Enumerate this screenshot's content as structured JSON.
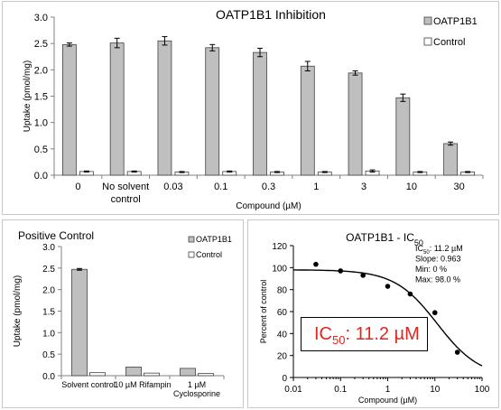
{
  "chart_data": [
    {
      "type": "bar",
      "title": "OATP1B1 Inhibition",
      "xlabel": "Compound (µM)",
      "ylabel": "Uptake (pmol/mg)",
      "ylim": [
        0,
        3
      ],
      "yticks": [
        "0.0",
        "0.5",
        "1.0",
        "1.5",
        "2.0",
        "2.5",
        "3.0"
      ],
      "categories": [
        "0",
        "No solvent control",
        "0.03",
        "0.1",
        "0.3",
        "1",
        "3",
        "10",
        "30"
      ],
      "category_lines": [
        [
          "0"
        ],
        [
          "No solvent",
          "control"
        ],
        [
          "0.03"
        ],
        [
          "0.1"
        ],
        [
          "0.3"
        ],
        [
          "1"
        ],
        [
          "3"
        ],
        [
          "10"
        ],
        [
          "30"
        ]
      ],
      "series": [
        {
          "name": "OATP1B1",
          "color": "#bfbfbf",
          "values": [
            2.48,
            2.51,
            2.55,
            2.42,
            2.33,
            2.07,
            1.94,
            1.47,
            0.6
          ],
          "errors": [
            0.03,
            0.09,
            0.08,
            0.06,
            0.08,
            0.09,
            0.04,
            0.07,
            0.03
          ]
        },
        {
          "name": "Control",
          "color": "#ffffff",
          "values": [
            0.07,
            0.07,
            0.06,
            0.07,
            0.06,
            0.06,
            0.08,
            0.06,
            0.06
          ],
          "errors": [
            0.01,
            0.01,
            0.01,
            0.01,
            0.01,
            0.01,
            0.02,
            0.01,
            0.01
          ]
        }
      ],
      "legend_position": "top-right"
    },
    {
      "type": "bar",
      "title": "Positive Control",
      "xlabel": "",
      "ylabel": "Uptake (pmol/mg)",
      "ylim": [
        0,
        3
      ],
      "yticks": [
        "0.0",
        "0.5",
        "1.0",
        "1.5",
        "2.0",
        "2.5",
        "3.0"
      ],
      "categories": [
        "Solvent control",
        "10 µM Rifampin",
        "1 µM Cyclosporine"
      ],
      "category_lines": [
        [
          "Solvent control"
        ],
        [
          "10 µM Rifampin"
        ],
        [
          "1 µM",
          "Cyclosporine"
        ]
      ],
      "series": [
        {
          "name": "OATP1B1",
          "color": "#bfbfbf",
          "values": [
            2.47,
            0.2,
            0.17
          ],
          "errors": [
            0.02,
            0,
            0
          ]
        },
        {
          "name": "Control",
          "color": "#ffffff",
          "values": [
            0.07,
            0.06,
            0.05
          ],
          "errors": [
            0,
            0,
            0
          ]
        }
      ],
      "legend_position": "top-right"
    },
    {
      "type": "scatter",
      "title_main": "OATP1B1 - IC",
      "title_sub": "50",
      "xlabel": "Compound (µM)",
      "ylabel": "Percent of control",
      "x_scale": "log",
      "xlim": [
        0.01,
        100
      ],
      "ylim": [
        0,
        120
      ],
      "xticks": [
        "0.01",
        "0.1",
        "1",
        "10",
        "100"
      ],
      "yticks": [
        "0",
        "20",
        "40",
        "60",
        "80",
        "100",
        "120"
      ],
      "points": {
        "x": [
          0.03,
          0.1,
          0.3,
          1,
          3,
          10,
          30
        ],
        "y": [
          103,
          97,
          93,
          83,
          76,
          59,
          23
        ]
      },
      "fit": {
        "ic50": 11.2,
        "slope": 0.963,
        "min": 0,
        "max": 98.0
      },
      "annotation_lines": [
        {
          "pre": "IC",
          "sub": "50",
          "post": ": 11.2 µM"
        },
        {
          "pre": "Slope: 0.963",
          "sub": "",
          "post": ""
        },
        {
          "pre": "Min: 0 %",
          "sub": "",
          "post": ""
        },
        {
          "pre": "Max: 98.0 %",
          "sub": "",
          "post": ""
        }
      ],
      "callout": {
        "pre": "IC",
        "sub": "50",
        "post": ": 11.2 µM",
        "color": "#e0261f"
      }
    }
  ]
}
